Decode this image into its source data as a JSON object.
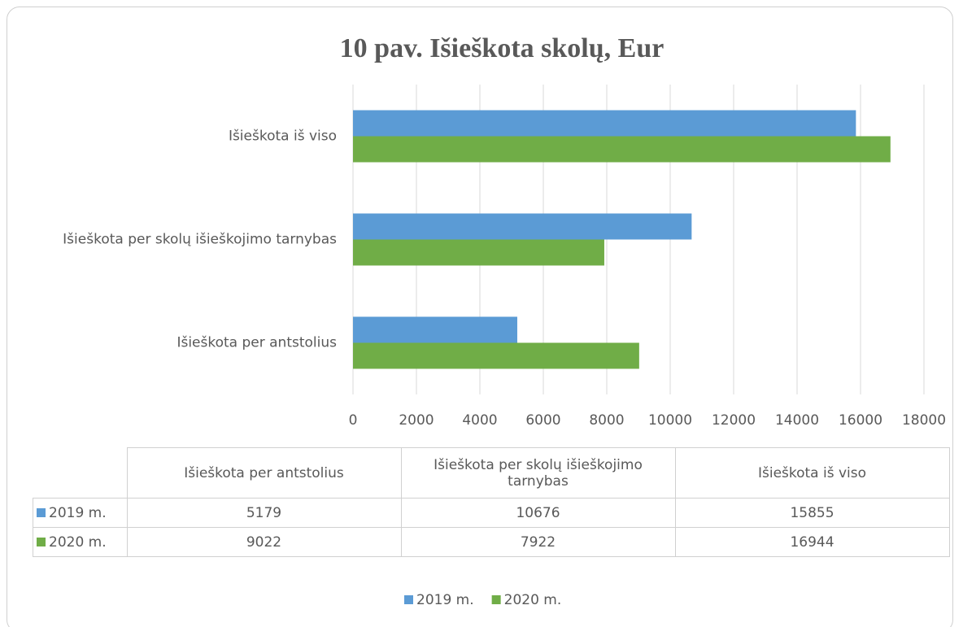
{
  "chart_data": {
    "type": "barh",
    "title": "10 pav. Išieškota skolų, Eur",
    "categories": [
      "Išieškota per antstolius",
      "Išieškota per skolų išieškojimo tarnybas",
      "Išieškota iš viso"
    ],
    "series": [
      {
        "name": "2019 m.",
        "color": "#5b9bd5",
        "values": [
          5179,
          10676,
          15855
        ]
      },
      {
        "name": "2020 m.",
        "color": "#70ad47",
        "values": [
          9022,
          7922,
          16944
        ]
      }
    ],
    "xlim": [
      0,
      18000
    ],
    "xticks": [
      0,
      2000,
      4000,
      6000,
      8000,
      10000,
      12000,
      14000,
      16000,
      18000
    ],
    "grid": true,
    "legend": "bottom",
    "data_table": true
  }
}
